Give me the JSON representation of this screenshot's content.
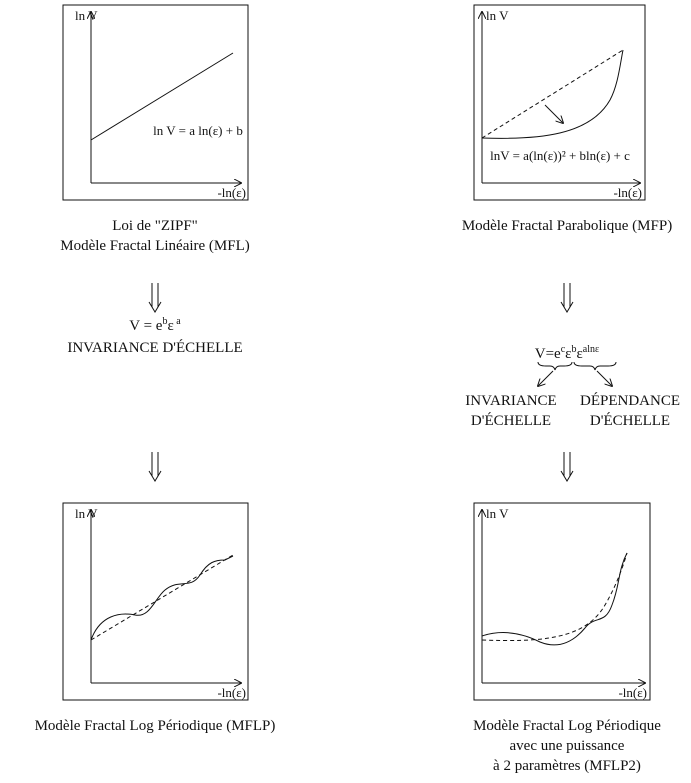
{
  "panels": [
    {
      "y_label": "ln V",
      "x_label": "-ln(ε)",
      "equation": "ln V = a ln(ε) + b",
      "caption": [
        "Loi de \"ZIPF\"",
        "Modèle Fractal Linéaire (MFL)"
      ]
    },
    {
      "y_label": "ln V",
      "x_label": "-ln(ε)",
      "equation": "lnV = a(ln(ε))² + bln(ε) + c",
      "caption": [
        "Modèle Fractal Parabolique (MFP)"
      ]
    },
    {
      "y_label": "ln V",
      "x_label": "-ln(ε)",
      "caption": [
        "Modèle Fractal Log Périodique (MFLP)"
      ]
    },
    {
      "y_label": "ln V",
      "x_label": "-ln(ε)",
      "caption": [
        "Modèle Fractal Log Périodique",
        "avec une puissance",
        "à 2 paramètres (MFLP2)"
      ]
    }
  ],
  "left_formula": {
    "parts": [
      "V = e",
      "b",
      "ε",
      " a"
    ],
    "meaning": "INVARIANCE D'ÉCHELLE"
  },
  "right_formula": {
    "parts": [
      "V=e",
      "c",
      "ε",
      "b",
      "ε",
      "alnε"
    ],
    "invariance": [
      "INVARIANCE",
      "D'ÉCHELLE"
    ],
    "dependance": [
      "DÉPENDANCE",
      "D'ÉCHELLE"
    ]
  }
}
